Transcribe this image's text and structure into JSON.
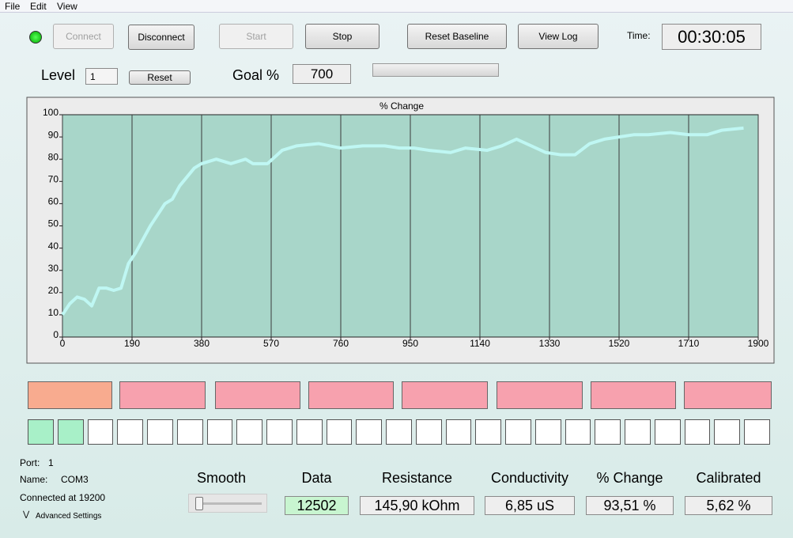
{
  "menu": [
    "File",
    "Edit",
    "View"
  ],
  "buttons": [
    "Connect",
    "Disconnect",
    "Start",
    "Stop",
    "Reset Baseline",
    "View Log"
  ],
  "time_label": "Time:",
  "time": "00:30:05",
  "level_label": "Level",
  "level_value": "1",
  "reset_button": "Reset",
  "goal_label": "Goal %",
  "goal_value": "700",
  "chart_data": {
    "type": "line",
    "title": "% Change",
    "x": [
      0,
      20,
      40,
      60,
      80,
      100,
      120,
      140,
      160,
      180,
      200,
      220,
      240,
      260,
      280,
      300,
      320,
      340,
      360,
      380,
      420,
      460,
      500,
      520,
      560,
      600,
      640,
      700,
      760,
      820,
      880,
      920,
      960,
      1000,
      1060,
      1100,
      1160,
      1200,
      1240,
      1280,
      1320,
      1360,
      1400,
      1440,
      1480,
      1520,
      1560,
      1600,
      1660,
      1710,
      1760,
      1800,
      1860
    ],
    "values": [
      10,
      15,
      18,
      17,
      14,
      22,
      22,
      21,
      22,
      33,
      38,
      44,
      50,
      55,
      60,
      62,
      68,
      72,
      76,
      78,
      80,
      78,
      80,
      78,
      78,
      84,
      86,
      87,
      85,
      86,
      86,
      85,
      85,
      84,
      83,
      85,
      84,
      86,
      89,
      86,
      83,
      82,
      82,
      87,
      89,
      90,
      91,
      91,
      92,
      91,
      91,
      93,
      94
    ],
    "color": "#bff7f3",
    "xlim": [
      0,
      1900
    ],
    "xticks": [
      0,
      190,
      380,
      570,
      760,
      950,
      1140,
      1330,
      1520,
      1710,
      1900
    ],
    "ylim": [
      0,
      100
    ],
    "yticks": [
      0,
      10,
      20,
      30,
      40,
      50,
      60,
      70,
      80,
      90,
      100
    ],
    "grid": "x"
  },
  "status": {
    "port_label": "Port:",
    "port": "1",
    "name_label": "Name:",
    "name": "COM3",
    "connected": "Connected at 19200",
    "advanced": "Advanced Settings"
  },
  "smooth_label": "Smooth",
  "readouts": [
    {
      "label": "Data",
      "value": "12502"
    },
    {
      "label": "Resistance",
      "value": "145,90 kOhm"
    },
    {
      "label": "Conductivity",
      "value": "6,85 uS"
    },
    {
      "label": "% Change",
      "value": "93,51 %"
    },
    {
      "label": "Calibrated",
      "value": "5,62 %"
    }
  ]
}
